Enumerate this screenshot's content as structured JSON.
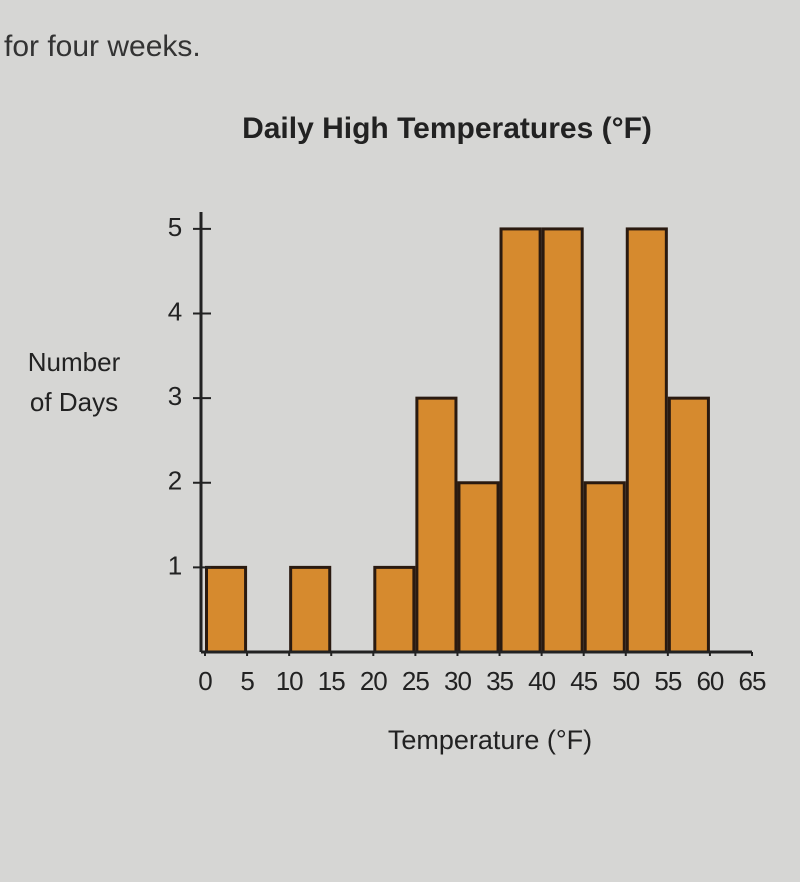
{
  "caption": "for four weeks.",
  "chart_data": {
    "type": "histogram",
    "title": "Daily High Temperatures (°F)",
    "x_label": "Temperature (°F)",
    "y_label": "Number of Days",
    "bins": [
      0,
      5,
      10,
      15,
      20,
      25,
      30,
      35,
      40,
      45,
      50,
      55,
      60,
      65
    ],
    "values": [
      1,
      0,
      1,
      0,
      1,
      3,
      2,
      5,
      5,
      2,
      5,
      3,
      0
    ],
    "color": "#d68a2e",
    "xlim": [
      0,
      65
    ],
    "ylim": [
      0,
      5.2
    ],
    "xticks": [
      0,
      5,
      10,
      15,
      20,
      25,
      30,
      35,
      40,
      45,
      50,
      55,
      60,
      65
    ],
    "yticks": [
      1,
      2,
      3,
      4,
      5
    ],
    "grid": false
  }
}
